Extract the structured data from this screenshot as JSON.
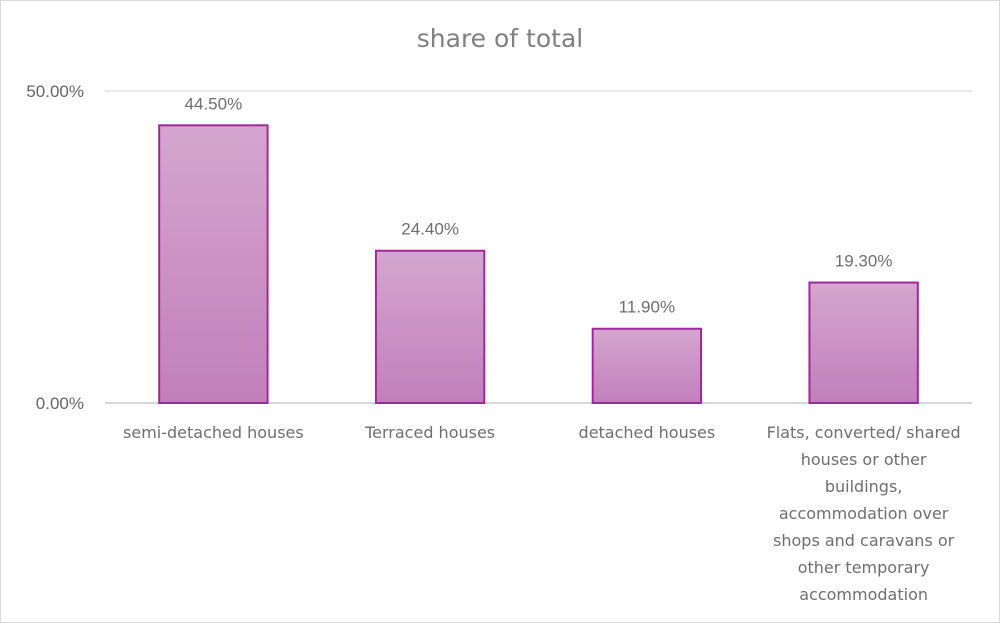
{
  "chart_data": {
    "type": "bar",
    "title": "share of total",
    "categories": [
      [
        "semi-detached houses"
      ],
      [
        "Terraced houses"
      ],
      [
        "detached houses"
      ],
      [
        "Flats, converted/ shared",
        "houses or other",
        "buildings,",
        "accommodation over",
        "shops and caravans or",
        "other temporary",
        "accommodation"
      ]
    ],
    "values": [
      44.5,
      24.4,
      11.9,
      19.3
    ],
    "data_labels": [
      "44.50%",
      "24.40%",
      "11.90%",
      "19.30%"
    ],
    "y_ticks": [
      {
        "value": 0,
        "label": "0.00%"
      },
      {
        "value": 50,
        "label": "50.00%"
      }
    ],
    "ylim": [
      0,
      50
    ],
    "xlabel": "",
    "ylabel": "",
    "grid": true,
    "legend": "none",
    "colors": {
      "bar_fill_top": "#d4a6cf",
      "bar_fill_bottom": "#c27fba",
      "bar_stroke": "#a0289a",
      "gridline": "#d9d9d9",
      "axis": "#bfbfbf"
    }
  }
}
